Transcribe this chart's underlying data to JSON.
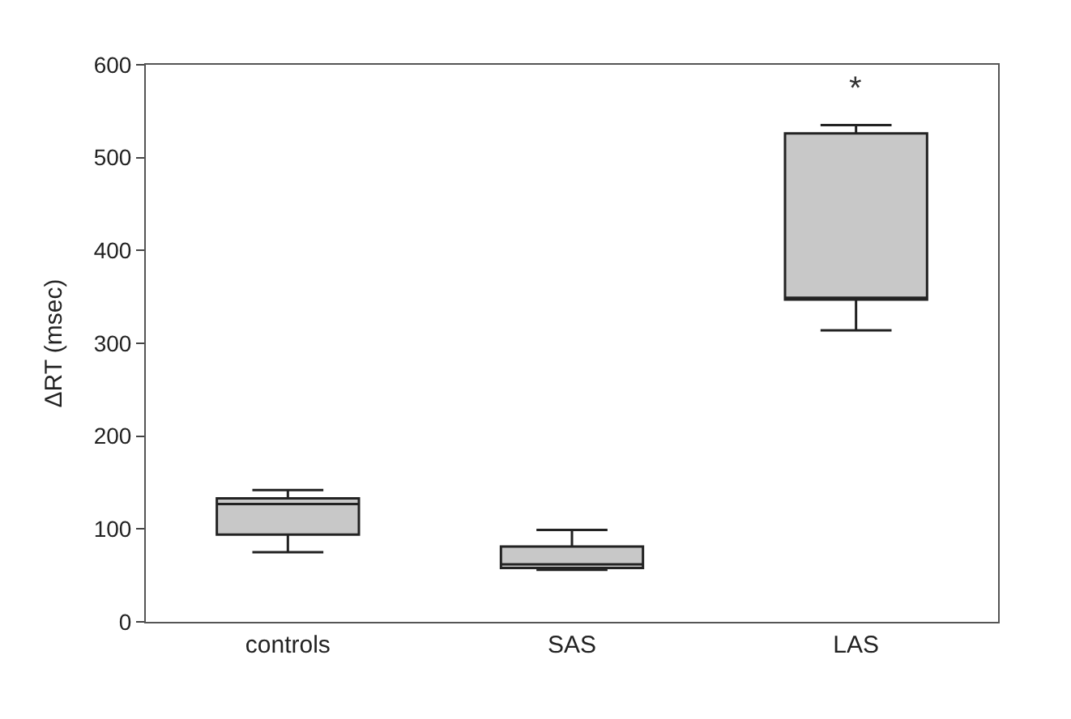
{
  "chart_data": {
    "type": "box",
    "ylabel": "ΔRT (msec)",
    "categories": [
      "controls",
      "SAS",
      "LAS"
    ],
    "boxes": [
      {
        "low": 75,
        "q1": 94,
        "median": 127,
        "q3": 133,
        "high": 142
      },
      {
        "low": 56,
        "q1": 58,
        "median": 62,
        "q3": 81,
        "high": 99
      },
      {
        "low": 314,
        "q1": 347,
        "median": 349,
        "q3": 526,
        "high": 535
      }
    ],
    "color": "#c8c8c8",
    "ylim": [
      0,
      600
    ],
    "yticks": [
      0,
      100,
      200,
      300,
      400,
      500,
      600
    ],
    "annotations": [
      "*"
    ]
  }
}
